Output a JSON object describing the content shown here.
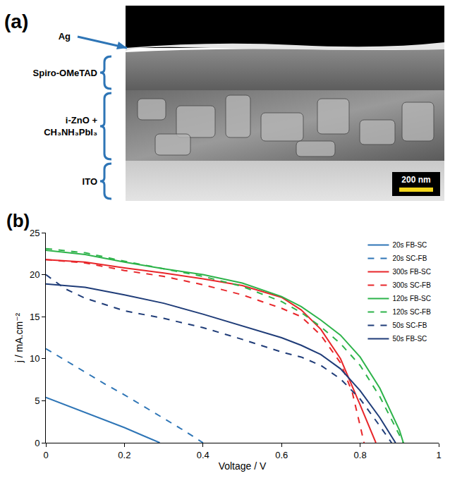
{
  "panel_a": {
    "letter": "(a)",
    "layers": [
      "Ag",
      "Spiro-OMeTAD",
      "i-ZnO + CH₃NH₃PbI₃",
      "ITO"
    ],
    "scale_bar": "200 nm"
  },
  "chart_data": {
    "type": "line",
    "annotations": [
      "(b)"
    ],
    "x_label": "Voltage / V",
    "y_label": "j / mA.cm⁻²",
    "xlim": [
      0,
      1
    ],
    "xticks": [
      0,
      0.2,
      0.4,
      0.6,
      0.8,
      1
    ],
    "ylim": [
      0,
      25
    ],
    "yticks": [
      0,
      5,
      10,
      15,
      20,
      25
    ],
    "grid": false,
    "legend": "top-right",
    "series": [
      {
        "name": "20s FB-SC",
        "color": "#2e75b6",
        "line_style": "solid",
        "x": [
          0,
          0.05,
          0.1,
          0.15,
          0.2,
          0.25,
          0.29
        ],
        "values": [
          5.4,
          4.5,
          3.6,
          2.7,
          1.8,
          0.8,
          0
        ]
      },
      {
        "name": "20s SC-FB",
        "color": "#2e75b6",
        "line_style": "dash",
        "x": [
          0,
          0.05,
          0.1,
          0.15,
          0.2,
          0.25,
          0.3,
          0.35,
          0.4
        ],
        "values": [
          11.2,
          9.8,
          8.4,
          7.0,
          5.7,
          4.3,
          2.9,
          1.5,
          0
        ]
      },
      {
        "name": "300s FB-SC",
        "color": "#e8262a",
        "line_style": "solid",
        "x": [
          0,
          0.1,
          0.2,
          0.3,
          0.4,
          0.5,
          0.6,
          0.65,
          0.7,
          0.75,
          0.8,
          0.84
        ],
        "values": [
          21.8,
          21.5,
          20.8,
          20.2,
          19.5,
          18.7,
          17.3,
          15.8,
          13.5,
          10.0,
          4.5,
          0
        ]
      },
      {
        "name": "300s SC-FB",
        "color": "#e8262a",
        "line_style": "dash",
        "x": [
          0,
          0.1,
          0.2,
          0.3,
          0.4,
          0.5,
          0.6,
          0.65,
          0.7,
          0.75,
          0.78,
          0.8,
          0.81
        ],
        "values": [
          21.8,
          21.4,
          20.5,
          19.8,
          18.8,
          17.6,
          16.0,
          15.0,
          12.8,
          9.5,
          6.0,
          2.0,
          0
        ]
      },
      {
        "name": "120s FB-SC",
        "color": "#2db34a",
        "line_style": "solid",
        "x": [
          0,
          0.1,
          0.2,
          0.3,
          0.4,
          0.5,
          0.6,
          0.65,
          0.7,
          0.75,
          0.8,
          0.85,
          0.9,
          0.91
        ],
        "values": [
          22.9,
          22.4,
          21.5,
          20.7,
          20.0,
          19.0,
          17.4,
          16.2,
          14.6,
          12.8,
          10.2,
          6.5,
          1.5,
          0
        ]
      },
      {
        "name": "120s SC-FB",
        "color": "#2db34a",
        "line_style": "dash",
        "x": [
          0,
          0.1,
          0.2,
          0.3,
          0.4,
          0.5,
          0.6,
          0.65,
          0.7,
          0.75,
          0.8,
          0.85,
          0.9,
          0.91
        ],
        "values": [
          23.1,
          22.6,
          21.6,
          20.7,
          19.8,
          18.6,
          16.8,
          15.5,
          13.8,
          11.8,
          9.2,
          5.5,
          0.8,
          0
        ]
      },
      {
        "name": "50s SC-FB",
        "color": "#1f3c78",
        "line_style": "dash",
        "x": [
          0,
          0.05,
          0.1,
          0.2,
          0.3,
          0.4,
          0.5,
          0.6,
          0.65,
          0.7,
          0.75,
          0.8,
          0.85,
          0.88
        ],
        "values": [
          20.0,
          18.3,
          17.2,
          15.7,
          14.8,
          13.7,
          12.3,
          10.8,
          10.2,
          9.2,
          7.6,
          5.2,
          2.0,
          0
        ]
      },
      {
        "name": "50s FB-SC",
        "color": "#1f3c78",
        "line_style": "solid",
        "x": [
          0,
          0.1,
          0.2,
          0.3,
          0.4,
          0.5,
          0.6,
          0.65,
          0.7,
          0.75,
          0.8,
          0.85,
          0.89
        ],
        "values": [
          18.9,
          18.5,
          17.6,
          16.6,
          15.3,
          13.9,
          12.5,
          11.6,
          10.5,
          8.8,
          6.2,
          3.0,
          0
        ]
      }
    ]
  }
}
